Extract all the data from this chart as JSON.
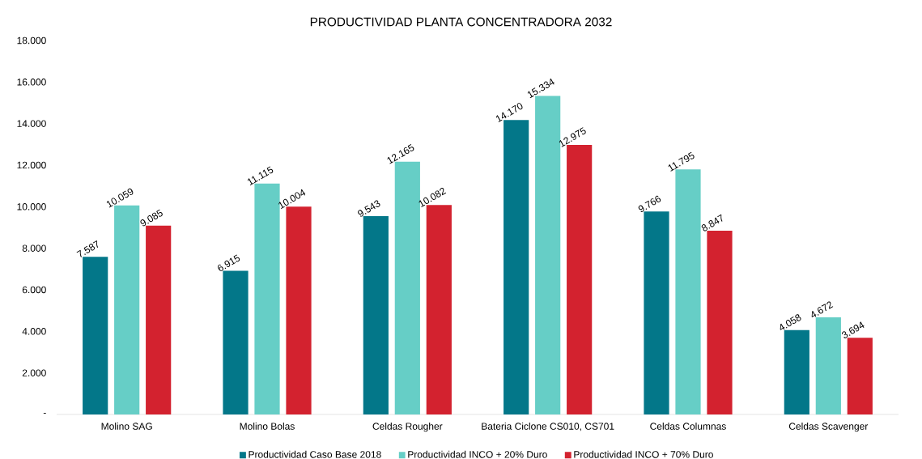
{
  "chart_data": {
    "type": "bar",
    "title": "PRODUCTIVIDAD PLANTA CONCENTRADORA 2032",
    "categories": [
      "Molino SAG",
      "Molino Bolas",
      "Celdas Rougher",
      "Bateria Ciclone CS010, CS701",
      "Celdas Columnas",
      "Celdas Scavenger"
    ],
    "series": [
      {
        "name": "Productividad Caso Base 2018",
        "color": "#037789",
        "values": [
          7587,
          6915,
          9543,
          14170,
          9766,
          4058
        ],
        "value_labels": [
          "7.587",
          "6.915",
          "9.543",
          "14.170",
          "9.766",
          "4.058"
        ]
      },
      {
        "name": "Productividad INCO + 20% Duro",
        "color": "#66cec6",
        "values": [
          10059,
          11115,
          12165,
          15334,
          11795,
          4672
        ],
        "value_labels": [
          "10.059",
          "11.115",
          "12.165",
          "15.334",
          "11.795",
          "4.672"
        ]
      },
      {
        "name": "Productividad INCO + 70% Duro",
        "color": "#d3222f",
        "values": [
          9085,
          10004,
          10082,
          12975,
          8847,
          3694
        ],
        "value_labels": [
          "9.085",
          "10.004",
          "10.082",
          "12.975",
          "8.847",
          "3.694"
        ]
      }
    ],
    "ylim": [
      0,
      18000
    ],
    "yticks": [
      {
        "value": 0,
        "label": "-"
      },
      {
        "value": 2000,
        "label": "2.000"
      },
      {
        "value": 4000,
        "label": "4.000"
      },
      {
        "value": 6000,
        "label": "6.000"
      },
      {
        "value": 8000,
        "label": "8.000"
      },
      {
        "value": 10000,
        "label": "10.000"
      },
      {
        "value": 12000,
        "label": "12.000"
      },
      {
        "value": 14000,
        "label": "14.000"
      },
      {
        "value": 16000,
        "label": "16.000"
      },
      {
        "value": 18000,
        "label": "18.000"
      }
    ],
    "legend": "bottom"
  }
}
